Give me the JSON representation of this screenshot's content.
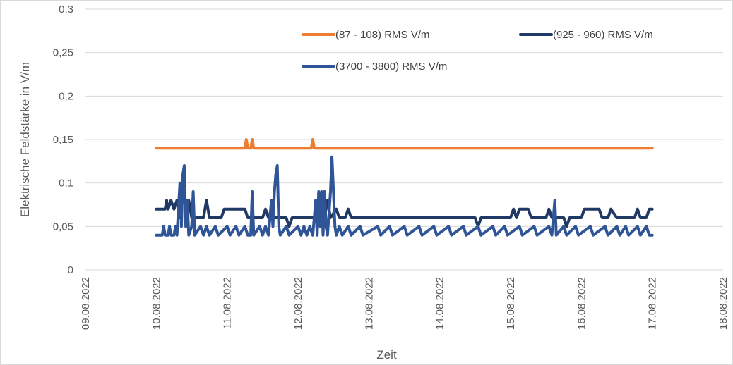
{
  "chart_data": {
    "type": "line",
    "title": "",
    "xlabel": "Zeit",
    "ylabel": "Elektrische Feldstärke in V/m",
    "x_range": [
      "09.08.2022",
      "18.08.2022"
    ],
    "x_ticks": [
      "09.08.2022",
      "10.08.2022",
      "11.08.2022",
      "12.08.2022",
      "13.08.2022",
      "14.08.2022",
      "15.08.2022",
      "16.08.2022",
      "17.08.2022",
      "18.08.2022"
    ],
    "ylim": [
      0,
      0.3
    ],
    "y_ticks": [
      {
        "value": 0,
        "label": "0"
      },
      {
        "value": 0.05,
        "label": "0,05"
      },
      {
        "value": 0.1,
        "label": "0,1"
      },
      {
        "value": 0.15,
        "label": "0,15"
      },
      {
        "value": 0.2,
        "label": "0,2"
      },
      {
        "value": 0.25,
        "label": "0,25"
      },
      {
        "value": 0.3,
        "label": "0,3"
      }
    ],
    "grid": "horizontal",
    "legend_position": "top",
    "series": [
      {
        "name": "(87 - 108) RMS  V/m",
        "color": "#ED7D31",
        "points": [
          [
            "10.08.2022 00:00",
            0.14
          ],
          [
            "11.08.2022 06:00",
            0.14
          ],
          [
            "11.08.2022 06:30",
            0.15
          ],
          [
            "11.08.2022 07:00",
            0.14
          ],
          [
            "11.08.2022 08:00",
            0.14
          ],
          [
            "11.08.2022 08:30",
            0.15
          ],
          [
            "11.08.2022 09:00",
            0.14
          ],
          [
            "12.08.2022 04:30",
            0.14
          ],
          [
            "12.08.2022 05:00",
            0.15
          ],
          [
            "12.08.2022 05:30",
            0.14
          ],
          [
            "17.08.2022 00:00",
            0.14
          ]
        ]
      },
      {
        "name": "(925 - 960) RMS  V/m",
        "color": "#203864",
        "points": [
          [
            "10.08.2022 00:00",
            0.07
          ],
          [
            "10.08.2022 03:00",
            0.07
          ],
          [
            "10.08.2022 03:30",
            0.08
          ],
          [
            "10.08.2022 04:00",
            0.07
          ],
          [
            "10.08.2022 05:00",
            0.08
          ],
          [
            "10.08.2022 06:00",
            0.07
          ],
          [
            "10.08.2022 07:00",
            0.08
          ],
          [
            "10.08.2022 08:00",
            0.06
          ],
          [
            "10.08.2022 09:00",
            0.09
          ],
          [
            "10.08.2022 10:00",
            0.07
          ],
          [
            "10.08.2022 11:00",
            0.08
          ],
          [
            "10.08.2022 12:00",
            0.06
          ],
          [
            "10.08.2022 16:00",
            0.06
          ],
          [
            "10.08.2022 17:00",
            0.08
          ],
          [
            "10.08.2022 18:00",
            0.06
          ],
          [
            "10.08.2022 22:00",
            0.06
          ],
          [
            "10.08.2022 23:00",
            0.07
          ],
          [
            "11.08.2022 06:00",
            0.07
          ],
          [
            "11.08.2022 07:00",
            0.06
          ],
          [
            "11.08.2022 12:00",
            0.06
          ],
          [
            "11.08.2022 13:00",
            0.07
          ],
          [
            "11.08.2022 14:00",
            0.06
          ],
          [
            "11.08.2022 15:00",
            0.07
          ],
          [
            "11.08.2022 16:00",
            0.06
          ],
          [
            "11.08.2022 20:00",
            0.06
          ],
          [
            "11.08.2022 21:00",
            0.05
          ],
          [
            "11.08.2022 22:00",
            0.06
          ],
          [
            "12.08.2022 09:00",
            0.06
          ],
          [
            "12.08.2022 10:00",
            0.08
          ],
          [
            "12.08.2022 11:00",
            0.06
          ],
          [
            "12.08.2022 13:00",
            0.07
          ],
          [
            "12.08.2022 14:00",
            0.06
          ],
          [
            "12.08.2022 16:00",
            0.06
          ],
          [
            "12.08.2022 17:00",
            0.07
          ],
          [
            "12.08.2022 18:00",
            0.06
          ],
          [
            "13.08.2022 00:00",
            0.06
          ],
          [
            "14.08.2022 12:00",
            0.06
          ],
          [
            "14.08.2022 13:00",
            0.05
          ],
          [
            "14.08.2022 14:00",
            0.06
          ],
          [
            "15.08.2022 00:00",
            0.06
          ],
          [
            "15.08.2022 01:00",
            0.07
          ],
          [
            "15.08.2022 02:00",
            0.06
          ],
          [
            "15.08.2022 03:00",
            0.07
          ],
          [
            "15.08.2022 06:00",
            0.07
          ],
          [
            "15.08.2022 07:00",
            0.06
          ],
          [
            "15.08.2022 12:00",
            0.06
          ],
          [
            "15.08.2022 13:00",
            0.07
          ],
          [
            "15.08.2022 14:00",
            0.06
          ],
          [
            "15.08.2022 18:00",
            0.06
          ],
          [
            "15.08.2022 19:00",
            0.05
          ],
          [
            "15.08.2022 20:00",
            0.06
          ],
          [
            "16.08.2022 00:00",
            0.06
          ],
          [
            "16.08.2022 01:00",
            0.07
          ],
          [
            "16.08.2022 06:00",
            0.07
          ],
          [
            "16.08.2022 07:00",
            0.06
          ],
          [
            "16.08.2022 09:00",
            0.06
          ],
          [
            "16.08.2022 10:00",
            0.07
          ],
          [
            "16.08.2022 12:00",
            0.06
          ],
          [
            "16.08.2022 18:00",
            0.06
          ],
          [
            "16.08.2022 19:00",
            0.07
          ],
          [
            "16.08.2022 20:00",
            0.06
          ],
          [
            "16.08.2022 22:00",
            0.06
          ],
          [
            "16.08.2022 23:00",
            0.07
          ],
          [
            "17.08.2022 00:00",
            0.07
          ]
        ]
      },
      {
        "name": "(3700 - 3800) RMS  V/m",
        "color": "#2F5597",
        "points": [
          [
            "10.08.2022 00:00",
            0.04
          ],
          [
            "10.08.2022 02:00",
            0.04
          ],
          [
            "10.08.2022 02:30",
            0.05
          ],
          [
            "10.08.2022 03:00",
            0.04
          ],
          [
            "10.08.2022 04:00",
            0.04
          ],
          [
            "10.08.2022 04:30",
            0.05
          ],
          [
            "10.08.2022 05:00",
            0.04
          ],
          [
            "10.08.2022 06:00",
            0.04
          ],
          [
            "10.08.2022 06:30",
            0.05
          ],
          [
            "10.08.2022 07:00",
            0.04
          ],
          [
            "10.08.2022 07:30",
            0.07
          ],
          [
            "10.08.2022 08:00",
            0.1
          ],
          [
            "10.08.2022 08:30",
            0.05
          ],
          [
            "10.08.2022 09:00",
            0.11
          ],
          [
            "10.08.2022 09:30",
            0.12
          ],
          [
            "10.08.2022 10:00",
            0.05
          ],
          [
            "10.08.2022 10:30",
            0.08
          ],
          [
            "10.08.2022 11:00",
            0.04
          ],
          [
            "10.08.2022 12:00",
            0.05
          ],
          [
            "10.08.2022 12:30",
            0.09
          ],
          [
            "10.08.2022 13:00",
            0.04
          ],
          [
            "10.08.2022 15:00",
            0.05
          ],
          [
            "10.08.2022 16:00",
            0.04
          ],
          [
            "10.08.2022 17:00",
            0.05
          ],
          [
            "10.08.2022 18:00",
            0.04
          ],
          [
            "10.08.2022 20:00",
            0.05
          ],
          [
            "10.08.2022 21:00",
            0.04
          ],
          [
            "11.08.2022 00:00",
            0.05
          ],
          [
            "11.08.2022 01:00",
            0.04
          ],
          [
            "11.08.2022 03:00",
            0.05
          ],
          [
            "11.08.2022 04:00",
            0.04
          ],
          [
            "11.08.2022 06:00",
            0.05
          ],
          [
            "11.08.2022 07:00",
            0.04
          ],
          [
            "11.08.2022 08:00",
            0.04
          ],
          [
            "11.08.2022 08:30",
            0.09
          ],
          [
            "11.08.2022 09:00",
            0.04
          ],
          [
            "11.08.2022 11:00",
            0.05
          ],
          [
            "11.08.2022 12:00",
            0.04
          ],
          [
            "11.08.2022 13:00",
            0.05
          ],
          [
            "11.08.2022 14:00",
            0.04
          ],
          [
            "11.08.2022 15:00",
            0.08
          ],
          [
            "11.08.2022 15:30",
            0.05
          ],
          [
            "11.08.2022 16:00",
            0.09
          ],
          [
            "11.08.2022 16:30",
            0.11
          ],
          [
            "11.08.2022 17:00",
            0.12
          ],
          [
            "11.08.2022 17:30",
            0.05
          ],
          [
            "11.08.2022 18:00",
            0.04
          ],
          [
            "11.08.2022 20:00",
            0.05
          ],
          [
            "11.08.2022 21:00",
            0.04
          ],
          [
            "12.08.2022 00:00",
            0.05
          ],
          [
            "12.08.2022 01:00",
            0.04
          ],
          [
            "12.08.2022 02:00",
            0.05
          ],
          [
            "12.08.2022 03:00",
            0.04
          ],
          [
            "12.08.2022 04:00",
            0.05
          ],
          [
            "12.08.2022 05:00",
            0.04
          ],
          [
            "12.08.2022 06:00",
            0.08
          ],
          [
            "12.08.2022 06:30",
            0.04
          ],
          [
            "12.08.2022 07:00",
            0.09
          ],
          [
            "12.08.2022 07:30",
            0.05
          ],
          [
            "12.08.2022 08:00",
            0.09
          ],
          [
            "12.08.2022 08:30",
            0.04
          ],
          [
            "12.08.2022 09:00",
            0.09
          ],
          [
            "12.08.2022 09:30",
            0.05
          ],
          [
            "12.08.2022 10:00",
            0.04
          ],
          [
            "12.08.2022 11:00",
            0.09
          ],
          [
            "12.08.2022 11:30",
            0.13
          ],
          [
            "12.08.2022 12:00",
            0.09
          ],
          [
            "12.08.2022 12:30",
            0.05
          ],
          [
            "12.08.2022 13:00",
            0.04
          ],
          [
            "12.08.2022 14:00",
            0.05
          ],
          [
            "12.08.2022 15:00",
            0.04
          ],
          [
            "12.08.2022 17:00",
            0.05
          ],
          [
            "12.08.2022 18:00",
            0.04
          ],
          [
            "12.08.2022 21:00",
            0.05
          ],
          [
            "12.08.2022 22:00",
            0.04
          ],
          [
            "13.08.2022 03:00",
            0.05
          ],
          [
            "13.08.2022 04:00",
            0.04
          ],
          [
            "13.08.2022 07:00",
            0.05
          ],
          [
            "13.08.2022 08:00",
            0.04
          ],
          [
            "13.08.2022 12:00",
            0.05
          ],
          [
            "13.08.2022 13:00",
            0.04
          ],
          [
            "13.08.2022 17:00",
            0.05
          ],
          [
            "13.08.2022 18:00",
            0.04
          ],
          [
            "13.08.2022 22:00",
            0.05
          ],
          [
            "13.08.2022 23:00",
            0.04
          ],
          [
            "14.08.2022 03:00",
            0.05
          ],
          [
            "14.08.2022 04:00",
            0.04
          ],
          [
            "14.08.2022 08:00",
            0.05
          ],
          [
            "14.08.2022 09:00",
            0.04
          ],
          [
            "14.08.2022 13:00",
            0.05
          ],
          [
            "14.08.2022 14:00",
            0.04
          ],
          [
            "14.08.2022 18:00",
            0.05
          ],
          [
            "14.08.2022 19:00",
            0.04
          ],
          [
            "14.08.2022 22:00",
            0.05
          ],
          [
            "14.08.2022 23:00",
            0.04
          ],
          [
            "15.08.2022 03:00",
            0.05
          ],
          [
            "15.08.2022 04:00",
            0.04
          ],
          [
            "15.08.2022 08:00",
            0.05
          ],
          [
            "15.08.2022 09:00",
            0.04
          ],
          [
            "15.08.2022 13:00",
            0.05
          ],
          [
            "15.08.2022 14:00",
            0.04
          ],
          [
            "15.08.2022 15:00",
            0.08
          ],
          [
            "15.08.2022 15:30",
            0.04
          ],
          [
            "15.08.2022 18:00",
            0.05
          ],
          [
            "15.08.2022 19:00",
            0.04
          ],
          [
            "15.08.2022 22:00",
            0.05
          ],
          [
            "15.08.2022 23:00",
            0.04
          ],
          [
            "16.08.2022 03:00",
            0.05
          ],
          [
            "16.08.2022 04:00",
            0.04
          ],
          [
            "16.08.2022 08:00",
            0.05
          ],
          [
            "16.08.2022 09:00",
            0.04
          ],
          [
            "16.08.2022 12:00",
            0.05
          ],
          [
            "16.08.2022 13:00",
            0.04
          ],
          [
            "16.08.2022 15:00",
            0.05
          ],
          [
            "16.08.2022 16:00",
            0.04
          ],
          [
            "16.08.2022 19:00",
            0.05
          ],
          [
            "16.08.2022 20:00",
            0.04
          ],
          [
            "16.08.2022 22:00",
            0.05
          ],
          [
            "16.08.2022 23:00",
            0.04
          ],
          [
            "17.08.2022 00:00",
            0.04
          ]
        ]
      }
    ]
  }
}
